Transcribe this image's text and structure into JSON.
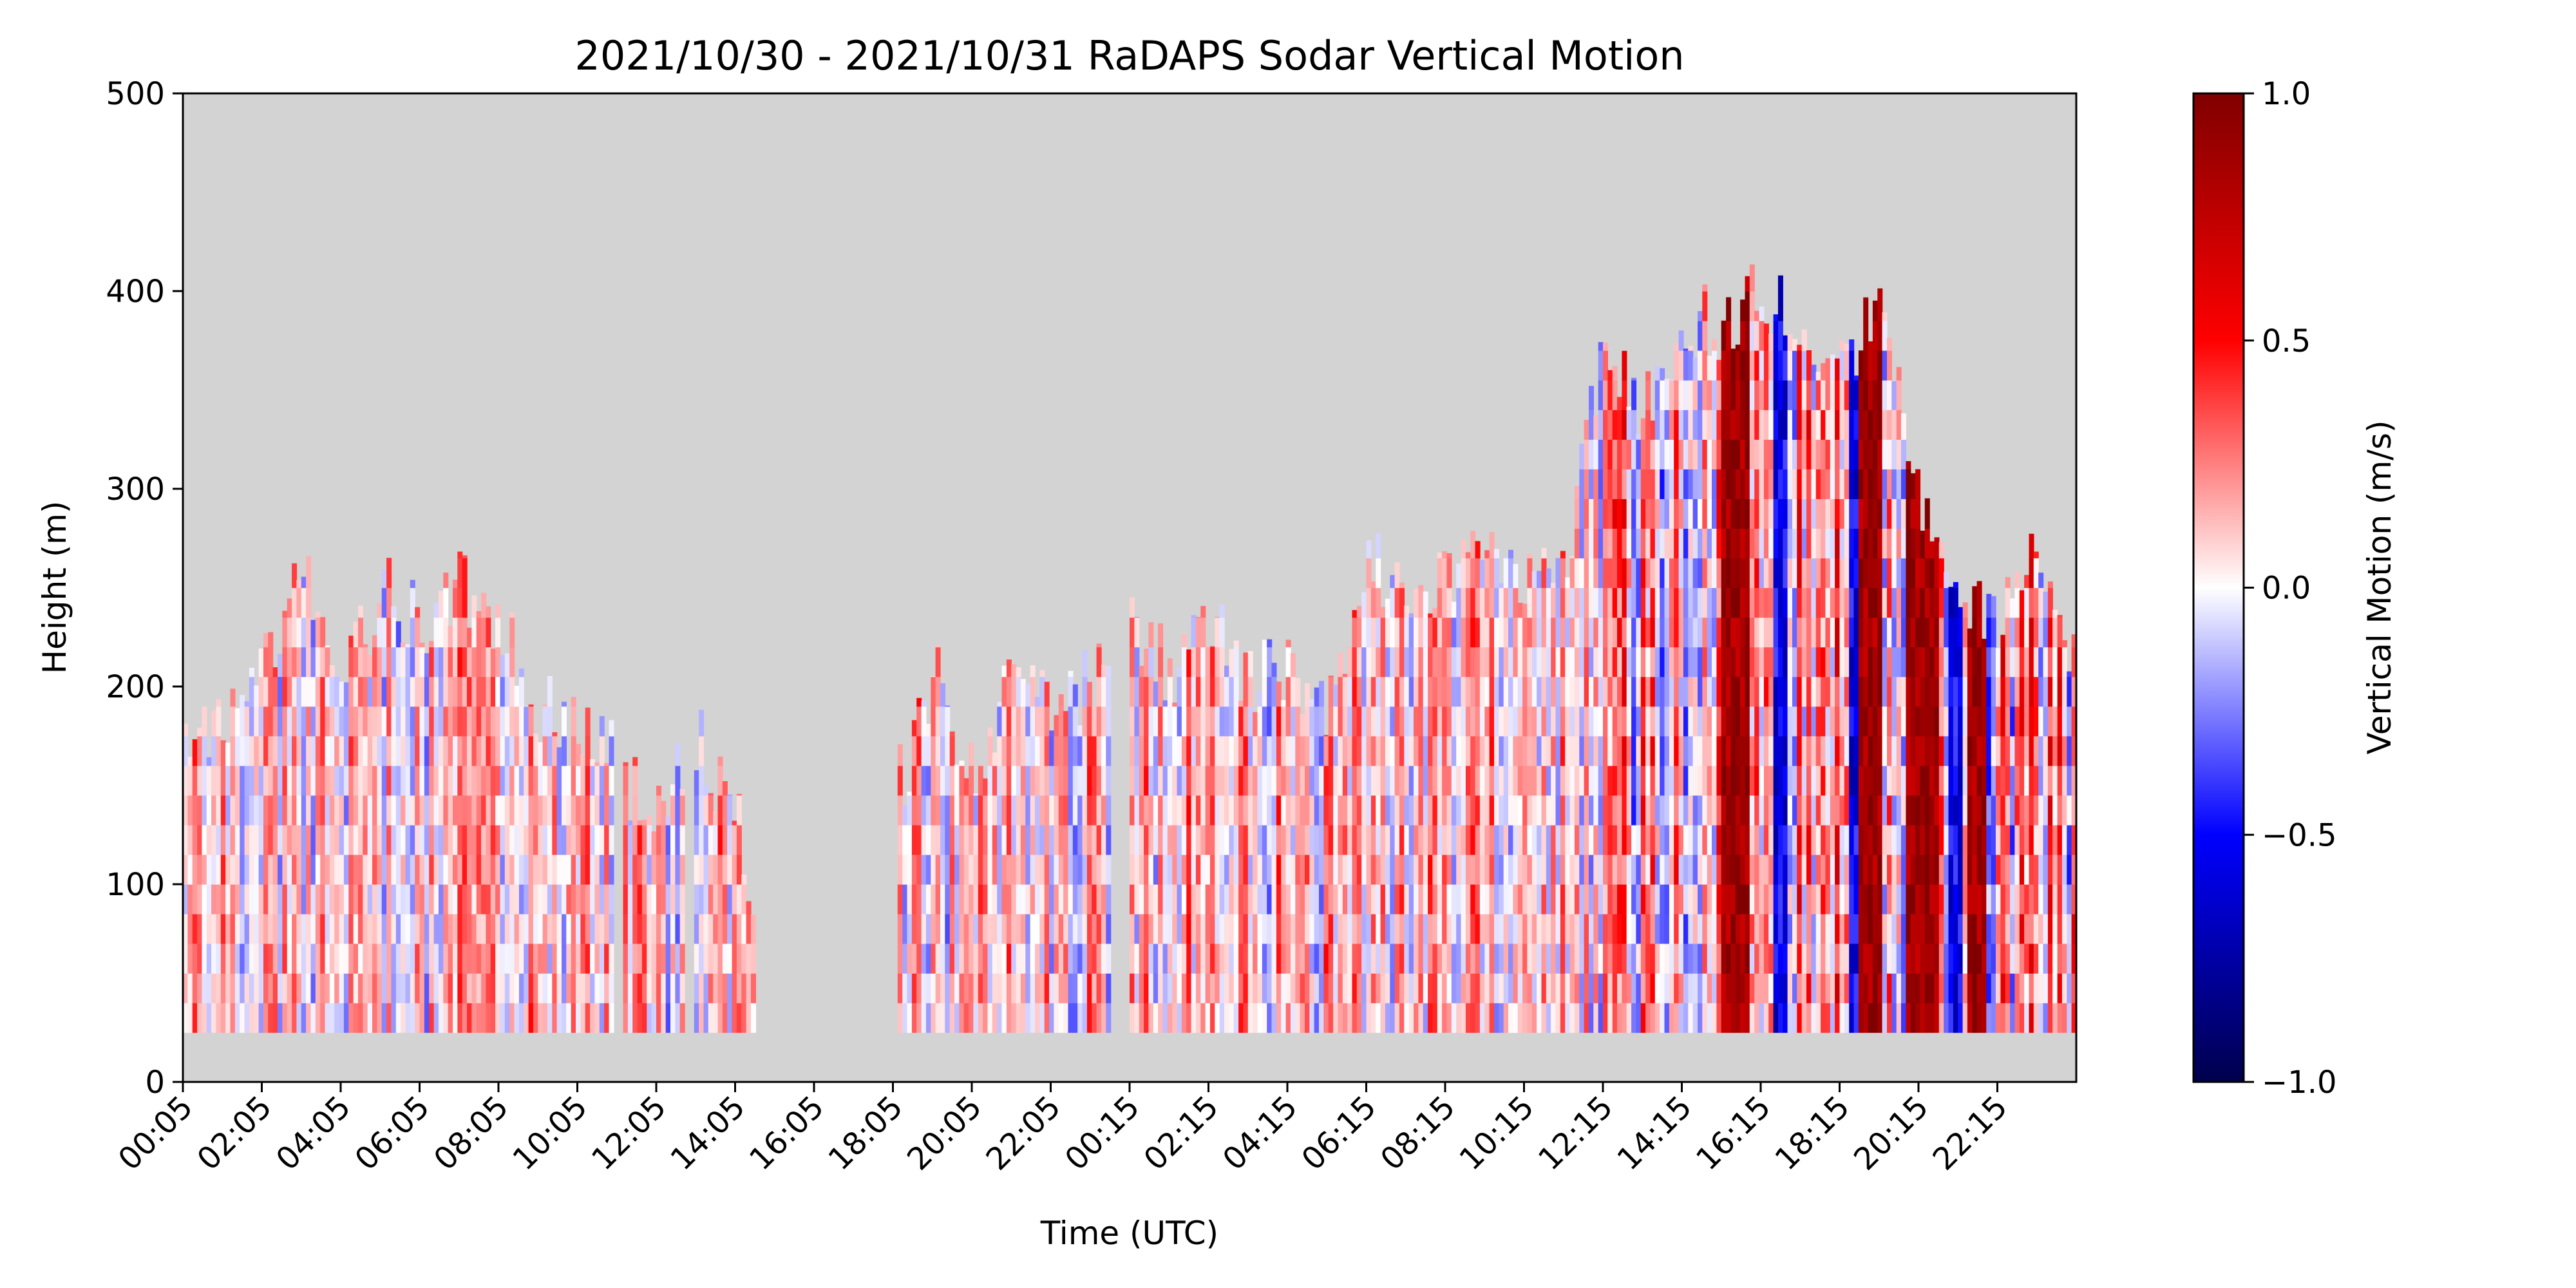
{
  "chart_data": {
    "type": "heatmap",
    "title": "2021/10/30 - 2021/10/31 RaDAPS Sodar Vertical Motion",
    "xlabel": "Time (UTC)",
    "ylabel": "Height (m)",
    "colorbar_label": "Vertical Motion (m/s)",
    "colormap": "seismic",
    "background_color": "#d3d3d3",
    "x_ticks": [
      "00:05",
      "02:05",
      "04:05",
      "06:05",
      "08:05",
      "10:05",
      "12:05",
      "14:05",
      "16:05",
      "18:05",
      "20:05",
      "22:05",
      "00:15",
      "02:15",
      "04:15",
      "06:15",
      "08:15",
      "10:15",
      "12:15",
      "14:15",
      "16:15",
      "18:15",
      "20:15",
      "22:15"
    ],
    "y_ticks": [
      0,
      100,
      200,
      300,
      400,
      500
    ],
    "ylim": [
      0,
      500
    ],
    "clim": [
      -1.0,
      1.0
    ],
    "colorbar_ticks": [
      "1.0",
      "0.5",
      "0.0",
      "−0.5",
      "−1.0"
    ],
    "colorbar_tick_values": [
      1.0,
      0.5,
      0.0,
      -0.5,
      -1.0
    ],
    "min_height_m": 25,
    "x_hours": [
      0,
      48
    ],
    "gap_hours": [
      14.5,
      18.0
    ],
    "height_profile_hours": [
      0,
      1,
      2,
      3,
      4,
      5,
      6,
      7,
      8,
      9,
      10,
      11,
      12,
      13,
      14,
      14.4,
      18.0,
      19,
      20,
      21,
      22,
      23,
      24,
      25,
      26,
      27,
      28,
      29,
      30,
      31,
      32,
      33,
      34,
      35,
      36,
      37,
      38,
      39,
      40,
      41,
      42,
      43,
      44,
      45,
      46,
      47,
      47.9
    ],
    "height_profile_m": [
      175,
      190,
      205,
      265,
      205,
      250,
      235,
      250,
      235,
      190,
      175,
      160,
      130,
      175,
      130,
      100,
      145,
      205,
      160,
      205,
      190,
      205,
      235,
      205,
      235,
      205,
      205,
      190,
      265,
      250,
      250,
      265,
      250,
      265,
      370,
      340,
      385,
      385,
      400,
      385,
      370,
      385,
      295,
      250,
      235,
      265,
      220
    ],
    "strong_updraft_bands_hours": [
      [
        38.9,
        39.6
      ],
      [
        42.4,
        43.0
      ],
      [
        43.6,
        44.5
      ],
      [
        45.2,
        45.7
      ]
    ],
    "downdraft_bands_hours": [
      [
        40.2,
        40.6
      ],
      [
        42.2,
        42.4
      ],
      [
        44.7,
        45.0
      ]
    ]
  }
}
